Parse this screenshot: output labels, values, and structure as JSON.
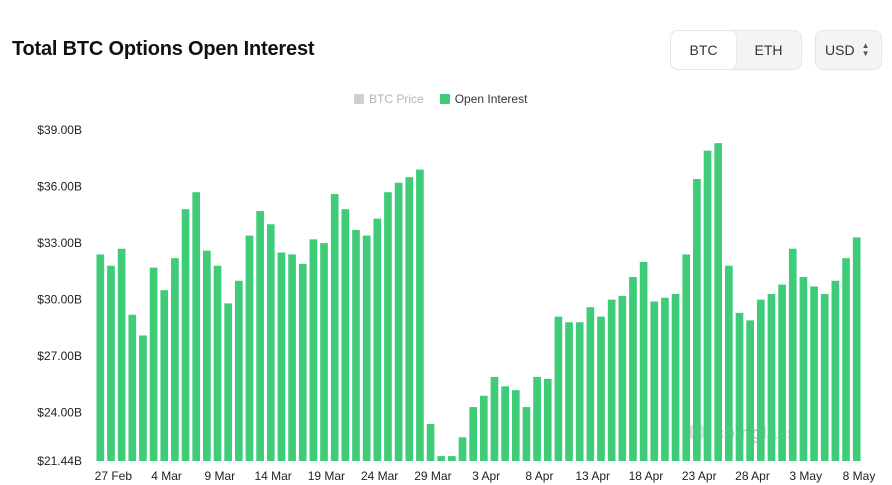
{
  "header": {
    "title": "Total BTC Options Open Interest",
    "asset_options": [
      "BTC",
      "ETH"
    ],
    "active_asset": "BTC",
    "currency": "USD"
  },
  "watermark": "coinglass",
  "colors": {
    "open_interest": "#3fcc78",
    "btc_price": "#cfcfcf"
  },
  "chart_data": {
    "type": "bar",
    "legend": [
      {
        "name": "BTC Price",
        "enabled": false
      },
      {
        "name": "Open Interest",
        "enabled": true
      }
    ],
    "y_ticks": [
      "$39.00B",
      "$36.00B",
      "$33.00B",
      "$30.00B",
      "$27.00B",
      "$24.00B",
      "$21.44B"
    ],
    "y_tick_values": [
      39.0,
      36.0,
      33.0,
      30.0,
      27.0,
      24.0,
      21.44
    ],
    "ylim": [
      21.44,
      39.0
    ],
    "x_ticks": [
      {
        "label": "27 Feb",
        "index": 0
      },
      {
        "label": "4 Mar",
        "index": 5
      },
      {
        "label": "9 Mar",
        "index": 10
      },
      {
        "label": "14 Mar",
        "index": 15
      },
      {
        "label": "19 Mar",
        "index": 20
      },
      {
        "label": "24 Mar",
        "index": 25
      },
      {
        "label": "29 Mar",
        "index": 30
      },
      {
        "label": "3 Apr",
        "index": 35
      },
      {
        "label": "8 Apr",
        "index": 40
      },
      {
        "label": "13 Apr",
        "index": 45
      },
      {
        "label": "18 Apr",
        "index": 50
      },
      {
        "label": "23 Apr",
        "index": 55
      },
      {
        "label": "28 Apr",
        "index": 60
      },
      {
        "label": "3 May",
        "index": 65
      },
      {
        "label": "8 May",
        "index": 70
      }
    ],
    "series": [
      {
        "name": "Open Interest",
        "unit": "USD billions",
        "values": [
          32.4,
          31.8,
          32.7,
          29.2,
          28.1,
          31.7,
          30.5,
          32.2,
          34.8,
          35.7,
          32.6,
          31.8,
          29.8,
          31.0,
          33.4,
          34.7,
          34.0,
          32.5,
          32.4,
          31.9,
          33.2,
          33.0,
          35.6,
          34.8,
          33.7,
          33.4,
          34.3,
          35.7,
          36.2,
          36.5,
          36.9,
          23.4,
          21.7,
          21.7,
          22.7,
          24.3,
          24.9,
          25.9,
          25.4,
          25.2,
          24.3,
          25.9,
          25.8,
          29.1,
          28.8,
          28.8,
          29.6,
          29.1,
          30.0,
          30.2,
          31.2,
          32.0,
          29.9,
          30.1,
          30.3,
          32.4,
          36.4,
          37.9,
          38.3,
          31.8,
          29.3,
          28.9,
          30.0,
          30.3,
          30.8,
          32.7,
          31.2,
          30.7,
          30.3,
          31.0,
          32.2,
          33.3
        ]
      }
    ]
  }
}
